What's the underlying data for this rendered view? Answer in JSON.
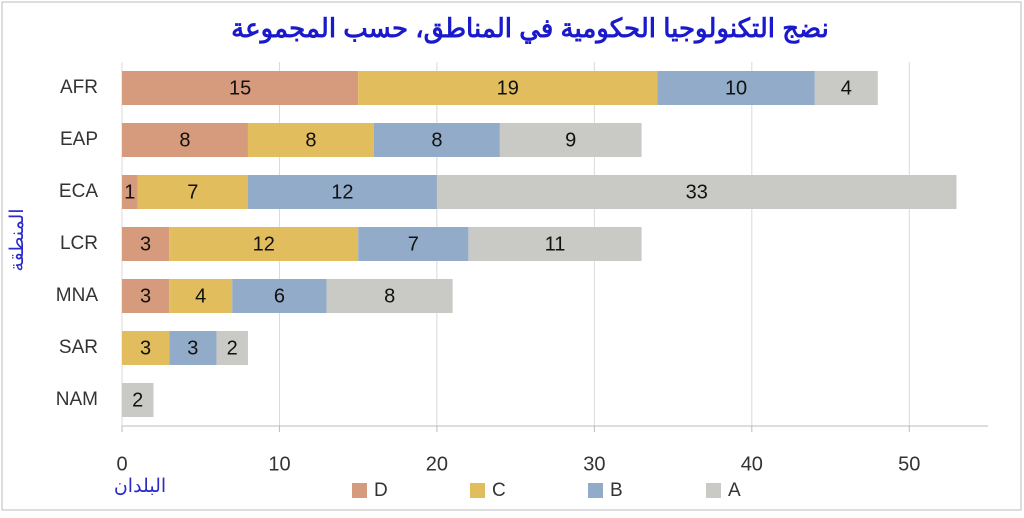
{
  "chart_data": {
    "type": "stacked-barh",
    "title": "نضج التكنولوجيا الحكومية في المناطق، حسب المجموعة",
    "xlabel": "البلدان",
    "ylabel": "المنطقة",
    "categories": [
      "AFR",
      "EAP",
      "ECA",
      "LCR",
      "MNA",
      "SAR",
      "NAM"
    ],
    "series": [
      {
        "name": "D",
        "color": "#d69a7c",
        "values": [
          15,
          8,
          1,
          3,
          3,
          null,
          null
        ]
      },
      {
        "name": "C",
        "color": "#e2bd5e",
        "values": [
          19,
          8,
          7,
          12,
          4,
          3,
          null
        ]
      },
      {
        "name": "B",
        "color": "#92abc9",
        "values": [
          10,
          8,
          12,
          7,
          6,
          3,
          null
        ]
      },
      {
        "name": "A",
        "color": "#c9cac5",
        "values": [
          4,
          9,
          33,
          11,
          8,
          2,
          2
        ]
      }
    ],
    "xlim": [
      0,
      55
    ],
    "xticks": [
      0,
      10,
      20,
      30,
      40,
      50
    ],
    "grid": true,
    "legend": "bottom"
  }
}
